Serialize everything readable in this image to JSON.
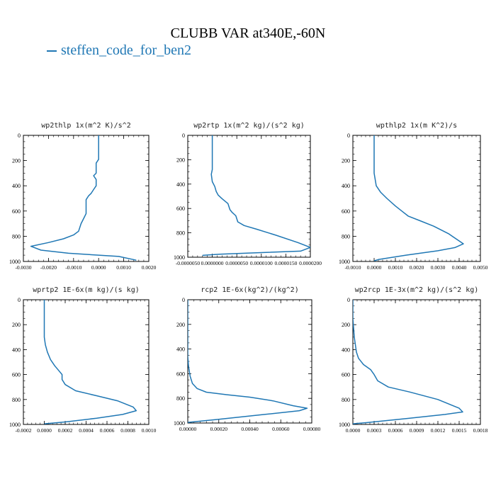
{
  "title": "CLUBB VAR at340E,-60N",
  "legend": {
    "label": "steffen_code_for_ben2",
    "color": "#1f77b4"
  },
  "chart_data": [
    {
      "type": "line",
      "title": "wp2thlp  1x(m^2 K)/s^2",
      "xlim": [
        -0.003,
        0.002
      ],
      "ylim": [
        1000,
        0
      ],
      "xticks": [
        -0.003,
        -0.002,
        -0.001,
        0.0,
        0.001,
        0.002
      ],
      "xtick_labels": [
        "-0.0030",
        "-0.0020",
        "-0.0010",
        "0.0000",
        "0.0010",
        "0.0020"
      ],
      "yticks": [
        0,
        200,
        400,
        600,
        800,
        1000
      ],
      "ytick_labels": [
        "0",
        "200",
        "400",
        "600",
        "800",
        "1000"
      ],
      "series": [
        {
          "color": "#1f77b4",
          "x": [
            0.0,
            0.0,
            0.0,
            -0.0001,
            -0.0001,
            -0.0002,
            -0.0001,
            -0.0001,
            -0.0002,
            -0.0003,
            -0.0004,
            -0.0005,
            -0.0005,
            -0.0005,
            -0.0006,
            -0.0007,
            -0.0008,
            -0.001,
            -0.0014,
            -0.002,
            -0.0027,
            -0.0023,
            -0.0012,
            0.0008,
            0.0015
          ],
          "y": [
            0,
            100,
            190,
            220,
            300,
            320,
            350,
            400,
            430,
            460,
            480,
            510,
            570,
            620,
            660,
            700,
            760,
            790,
            820,
            850,
            880,
            910,
            935,
            960,
            990
          ]
        }
      ]
    },
    {
      "type": "line",
      "title": "wp2rtp  1x(m^2 kg)/(s^2 kg)",
      "xlim": [
        -5e-06,
        2e-05
      ],
      "ylim": [
        1000,
        0
      ],
      "xticks": [
        -5e-06,
        0.0,
        5e-06,
        1e-05,
        1.5e-05,
        2e-05
      ],
      "xtick_labels": [
        "-0.0000050",
        "0.0000000",
        "0.0000050",
        "0.0000100",
        "0.0000150",
        "0.0000200"
      ],
      "yticks": [
        0,
        200,
        400,
        600,
        800,
        1000
      ],
      "ytick_labels": [
        "0",
        "200",
        "400",
        "600",
        "800",
        "1000"
      ],
      "series": [
        {
          "color": "#1f77b4",
          "x": [
            0.0,
            0.0,
            0.0,
            -2e-07,
            0.0,
            5e-07,
            8e-07,
            1.2e-06,
            2e-06,
            3.2e-06,
            3.6e-06,
            4e-06,
            4.8e-06,
            5.2e-06,
            6.5e-06,
            9e-06,
            1.3e-05,
            1.75e-05,
            2e-05,
            1.8e-05,
            8e-06,
            1.5e-06,
            -2e-06
          ],
          "y": [
            0,
            100,
            280,
            320,
            380,
            420,
            460,
            490,
            520,
            560,
            610,
            630,
            660,
            710,
            740,
            770,
            820,
            880,
            920,
            950,
            965,
            975,
            985
          ]
        }
      ]
    },
    {
      "type": "line",
      "title": "wpthlp2  1x(m K^2)/s",
      "xlim": [
        -0.001,
        0.005
      ],
      "ylim": [
        1000,
        0
      ],
      "xticks": [
        -0.001,
        0.0,
        0.001,
        0.002,
        0.003,
        0.004,
        0.005
      ],
      "xtick_labels": [
        "-0.0010",
        "0.0000",
        "0.0010",
        "0.0020",
        "0.0030",
        "0.0040",
        "0.0050"
      ],
      "yticks": [
        0,
        200,
        400,
        600,
        800,
        1000
      ],
      "ytick_labels": [
        "0",
        "200",
        "400",
        "600",
        "800",
        "1000"
      ],
      "series": [
        {
          "color": "#1f77b4",
          "x": [
            0.0,
            0.0,
            0.0,
            0.0001,
            0.0003,
            0.0006,
            0.001,
            0.0013,
            0.0016,
            0.0022,
            0.0028,
            0.0035,
            0.0042,
            0.0038,
            0.003,
            0.0015,
            0.0002,
            0.0
          ],
          "y": [
            0,
            150,
            300,
            400,
            450,
            500,
            560,
            600,
            640,
            680,
            720,
            780,
            860,
            890,
            915,
            950,
            985,
            995
          ]
        }
      ]
    },
    {
      "type": "line",
      "title": "wprtp2  1E-6x(m kg)/(s kg)",
      "xlim": [
        -0.0002,
        0.001
      ],
      "ylim": [
        1000,
        0
      ],
      "xticks": [
        -0.0002,
        0.0,
        0.0002,
        0.0004,
        0.0006,
        0.0008,
        0.001
      ],
      "xtick_labels": [
        "-0.0002",
        "0.0000",
        "0.0002",
        "0.0004",
        "0.0006",
        "0.0008",
        "0.0010"
      ],
      "yticks": [
        0,
        200,
        400,
        600,
        800,
        1000
      ],
      "ytick_labels": [
        "0",
        "200",
        "400",
        "600",
        "800",
        "1000"
      ],
      "series": [
        {
          "color": "#1f77b4",
          "x": [
            0.0,
            0.0,
            0.0,
            1e-05,
            3e-05,
            6e-05,
            0.0001,
            0.00014,
            0.00017,
            0.00017,
            0.0002,
            0.0003,
            0.0005,
            0.0007,
            0.00085,
            0.00088,
            0.00075,
            0.0005,
            0.0002,
            0.0
          ],
          "y": [
            0,
            150,
            300,
            360,
            420,
            480,
            530,
            570,
            600,
            640,
            680,
            730,
            770,
            810,
            860,
            890,
            920,
            950,
            980,
            995
          ]
        }
      ]
    },
    {
      "type": "line",
      "title": "rcp2  1E-6x(kg^2)/(kg^2)",
      "xlim": [
        0.0,
        0.0008
      ],
      "ylim": [
        1000,
        0
      ],
      "xticks": [
        0.0,
        0.0002,
        0.0004,
        0.0006,
        0.0008
      ],
      "xtick_labels": [
        "0.00000",
        "0.00020",
        "0.00040",
        "0.00060",
        "0.00080"
      ],
      "yticks": [
        0,
        200,
        400,
        600,
        800,
        1000
      ],
      "ytick_labels": [
        "0",
        "200",
        "400",
        "600",
        "800",
        "1000"
      ],
      "series": [
        {
          "color": "#1f77b4",
          "x": [
            0.0,
            0.0,
            0.0,
            5e-06,
            1.5e-05,
            3e-05,
            6e-05,
            0.00012,
            0.00025,
            0.0004,
            0.00055,
            0.00068,
            0.00077,
            0.00072,
            0.0005,
            0.0002,
            0.0
          ],
          "y": [
            0,
            200,
            460,
            540,
            620,
            680,
            720,
            750,
            770,
            790,
            820,
            860,
            880,
            900,
            930,
            970,
            995
          ]
        }
      ]
    },
    {
      "type": "line",
      "title": "wp2rcp  1E-3x(m^2 kg)/(s^2 kg)",
      "xlim": [
        0.0,
        0.0018
      ],
      "ylim": [
        1000,
        0
      ],
      "xticks": [
        0.0,
        0.0003,
        0.0006,
        0.0009,
        0.0012,
        0.0015,
        0.0018
      ],
      "xtick_labels": [
        "0.0000",
        "0.0003",
        "0.0006",
        "0.0009",
        "0.0012",
        "0.0015",
        "0.0018"
      ],
      "yticks": [
        0,
        200,
        400,
        600,
        800,
        1000
      ],
      "ytick_labels": [
        "0",
        "200",
        "400",
        "600",
        "800",
        "1000"
      ],
      "series": [
        {
          "color": "#1f77b4",
          "x": [
            0.0,
            0.0,
            2e-05,
            5e-05,
            8e-05,
            0.00015,
            0.00025,
            0.0003,
            0.00035,
            0.0005,
            0.0008,
            0.0012,
            0.0015,
            0.00155,
            0.0013,
            0.0008,
            0.0002,
            0.0
          ],
          "y": [
            0,
            150,
            300,
            420,
            470,
            520,
            560,
            600,
            650,
            700,
            740,
            800,
            870,
            900,
            920,
            950,
            985,
            995
          ]
        }
      ]
    }
  ]
}
